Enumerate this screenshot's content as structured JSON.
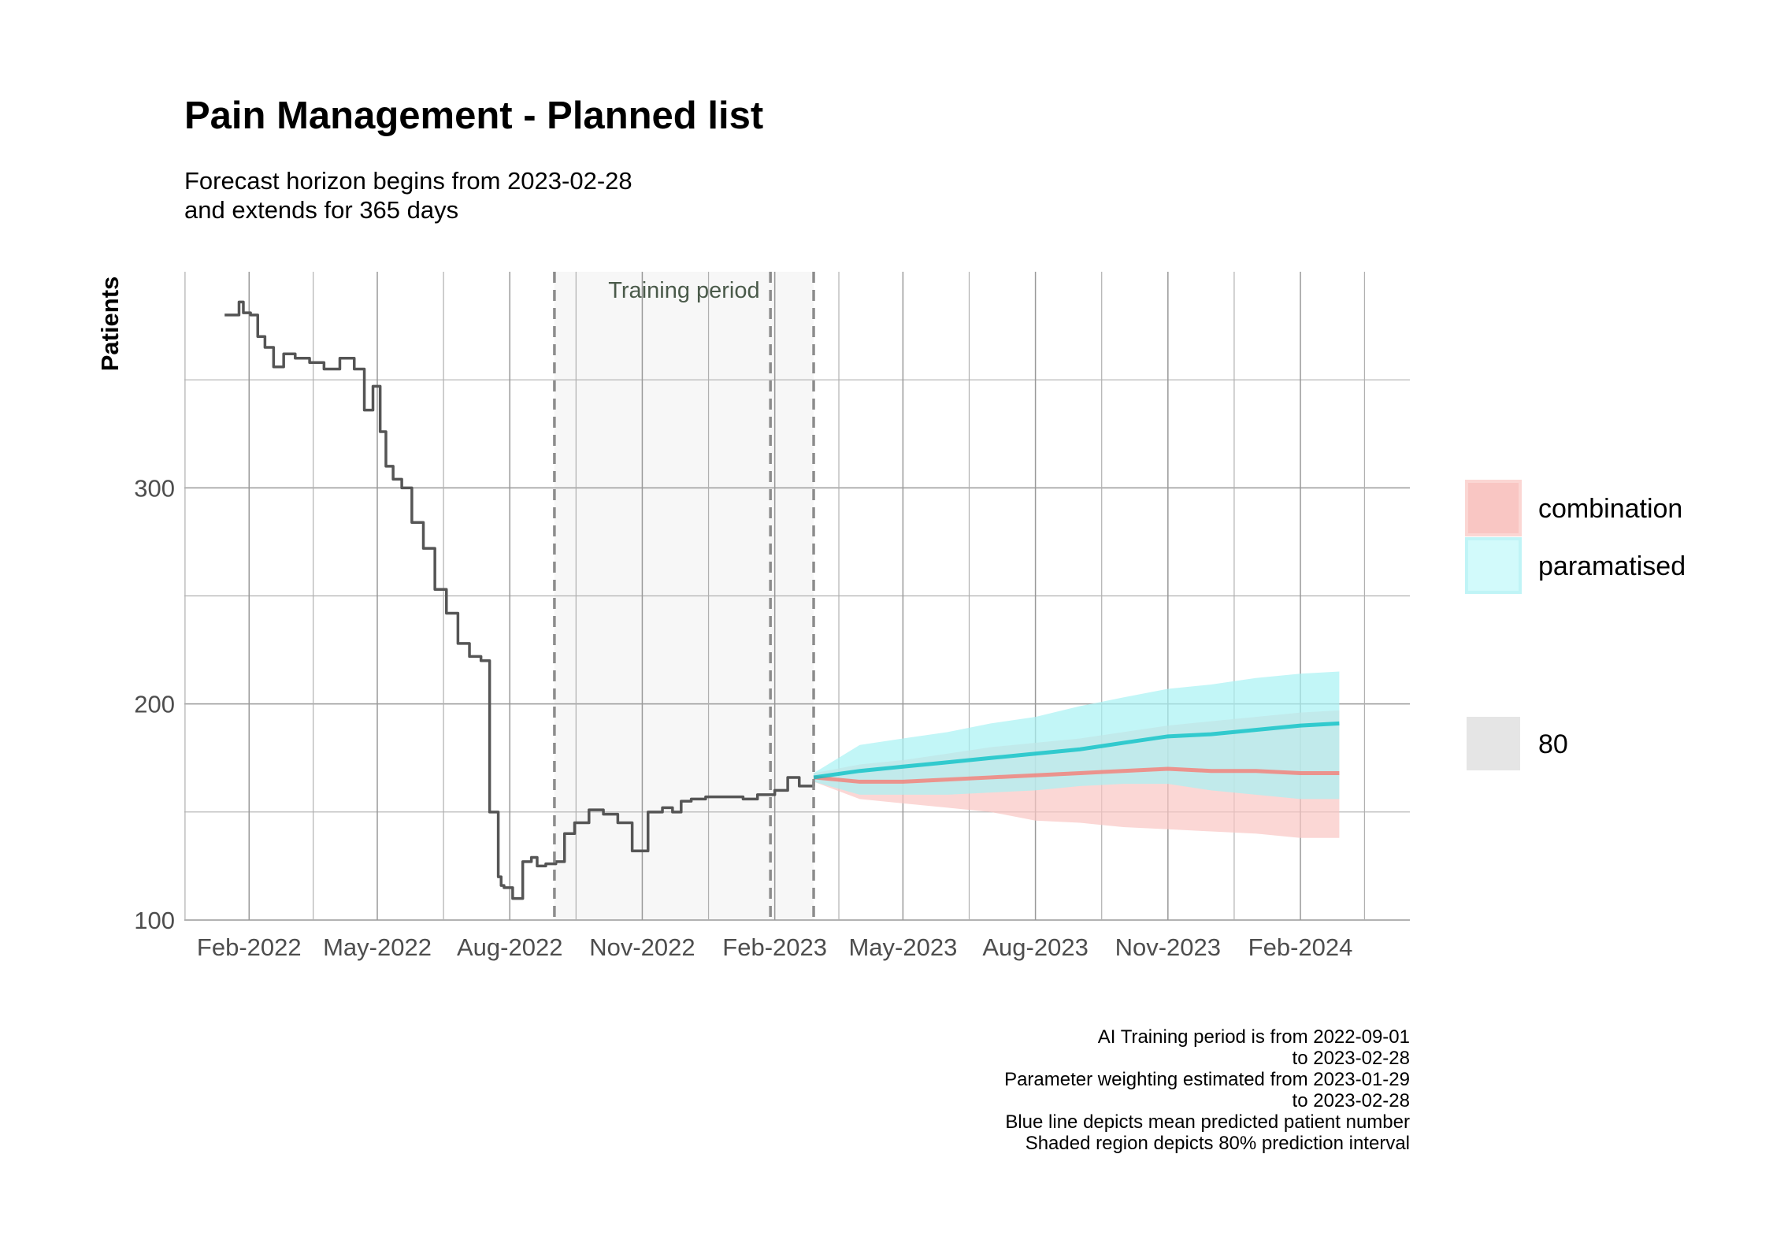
{
  "chart_data": {
    "type": "line",
    "title": "Pain Management - Planned list",
    "subtitle_lines": [
      "Forecast horizon begins from 2023-02-28",
      "and extends for 365 days"
    ],
    "ylabel": "Patients",
    "xlabel": "",
    "ylim": [
      100,
      400
    ],
    "xlim": [
      "2021-12-18",
      "2024-04-17"
    ],
    "y_ticks": [
      100,
      200,
      300
    ],
    "x_ticks": [
      {
        "date": "2022-02-01",
        "label": "Feb-2022"
      },
      {
        "date": "2022-05-01",
        "label": "May-2022"
      },
      {
        "date": "2022-08-01",
        "label": "Aug-2022"
      },
      {
        "date": "2022-11-01",
        "label": "Nov-2022"
      },
      {
        "date": "2023-02-01",
        "label": "Feb-2023"
      },
      {
        "date": "2023-05-01",
        "label": "May-2023"
      },
      {
        "date": "2023-08-01",
        "label": "Aug-2023"
      },
      {
        "date": "2023-11-01",
        "label": "Nov-2023"
      },
      {
        "date": "2024-02-01",
        "label": "Feb-2024"
      }
    ],
    "grid": true,
    "training_period": {
      "start": "2022-09-01",
      "end": "2023-02-28",
      "label": "Training period"
    },
    "parameter_window": {
      "start": "2023-01-29",
      "end": "2023-02-28"
    },
    "observed": {
      "color": "#555555",
      "x": [
        "2022-01-15",
        "2022-01-21",
        "2022-01-25",
        "2022-01-28",
        "2022-02-02",
        "2022-02-07",
        "2022-02-12",
        "2022-02-18",
        "2022-02-25",
        "2022-03-05",
        "2022-03-15",
        "2022-03-25",
        "2022-04-05",
        "2022-04-15",
        "2022-04-22",
        "2022-04-28",
        "2022-05-03",
        "2022-05-07",
        "2022-05-12",
        "2022-05-18",
        "2022-05-25",
        "2022-06-02",
        "2022-06-10",
        "2022-06-18",
        "2022-06-26",
        "2022-07-04",
        "2022-07-12",
        "2022-07-18",
        "2022-07-24",
        "2022-07-26",
        "2022-07-28",
        "2022-08-03",
        "2022-08-10",
        "2022-08-16",
        "2022-08-20",
        "2022-08-26",
        "2022-09-02",
        "2022-09-08",
        "2022-09-15",
        "2022-09-25",
        "2022-10-05",
        "2022-10-15",
        "2022-10-25",
        "2022-11-05",
        "2022-11-15",
        "2022-11-22",
        "2022-11-28",
        "2022-12-05",
        "2022-12-15",
        "2022-12-28",
        "2023-01-10",
        "2023-01-20",
        "2023-02-01",
        "2023-02-10",
        "2023-02-18",
        "2023-02-28"
      ],
      "y": [
        380,
        380,
        386,
        381,
        380,
        370,
        365,
        356,
        362,
        360,
        358,
        355,
        360,
        355,
        336,
        347,
        326,
        310,
        304,
        300,
        284,
        272,
        253,
        242,
        228,
        222,
        220,
        150,
        120,
        116,
        115,
        110,
        127,
        129,
        125,
        126,
        127,
        140,
        145,
        151,
        149,
        145,
        132,
        150,
        152,
        150,
        155,
        156,
        157,
        157,
        156,
        158,
        160,
        166,
        162,
        164
      ]
    },
    "forecast": {
      "x": [
        "2023-02-28",
        "2023-04-01",
        "2023-05-01",
        "2023-06-01",
        "2023-07-01",
        "2023-08-01",
        "2023-09-01",
        "2023-10-01",
        "2023-11-01",
        "2023-12-01",
        "2024-01-01",
        "2024-02-01",
        "2024-02-28"
      ],
      "series": [
        {
          "name": "combination",
          "color": "#F8766D",
          "band_color": "#F9C6C3",
          "mean": [
            166,
            164,
            164,
            165,
            166,
            167,
            168,
            169,
            170,
            169,
            169,
            168,
            168
          ],
          "lower": [
            164,
            156,
            154,
            152,
            150,
            146,
            145,
            143,
            142,
            141,
            140,
            138,
            138
          ],
          "upper": [
            168,
            172,
            174,
            177,
            180,
            182,
            184,
            187,
            190,
            192,
            194,
            196,
            197
          ]
        },
        {
          "name": "paramatised",
          "color": "#00BFC4",
          "band_color": "#A8F2F4",
          "mean": [
            166,
            169,
            171,
            173,
            175,
            177,
            179,
            182,
            185,
            186,
            188,
            190,
            191
          ],
          "lower": [
            164,
            158,
            158,
            158,
            159,
            160,
            162,
            163,
            163,
            160,
            158,
            156,
            156
          ],
          "upper": [
            168,
            181,
            184,
            187,
            191,
            194,
            199,
            203,
            207,
            209,
            212,
            214,
            215
          ]
        }
      ]
    },
    "legend": {
      "position": "right",
      "items": [
        {
          "label": "combination",
          "color": "#F9C6C3"
        },
        {
          "label": "paramatised",
          "color": "#C8F8F9"
        }
      ],
      "interval_item": {
        "label": "80",
        "color": "#E5E5E5"
      }
    },
    "caption_lines": [
      "AI Training period is from 2022-09-01",
      "to 2023-02-28",
      "Parameter weighting estimated from 2023-01-29",
      "to 2023-02-28",
      "Blue line depicts mean predicted patient number",
      "Shaded region depicts 80% prediction interval"
    ]
  }
}
